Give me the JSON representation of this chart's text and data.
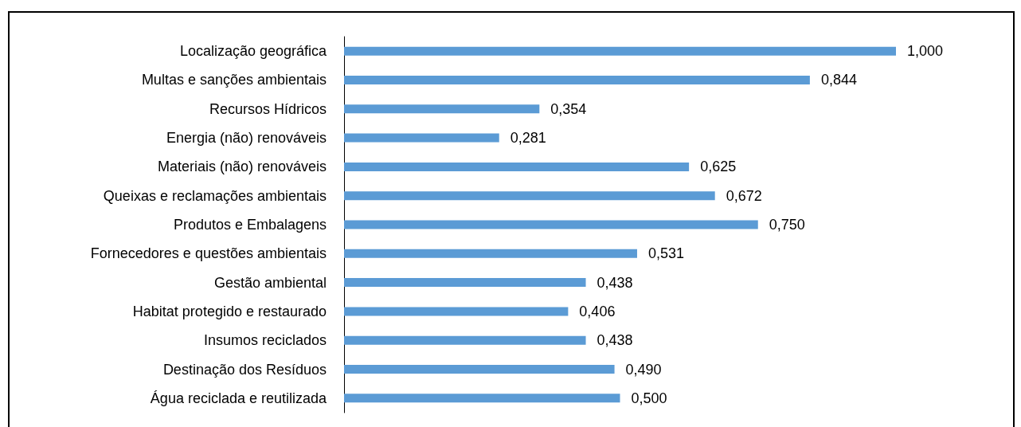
{
  "chart_data": {
    "type": "bar",
    "orientation": "horizontal",
    "color": "#5b9bd5",
    "value_labels": [
      "1,000",
      "0,844",
      "0,354",
      "0,281",
      "0,625",
      "0,672",
      "0,750",
      "0,531",
      "0,438",
      "0,406",
      "0,438",
      "0,490",
      "0,500"
    ],
    "categories": [
      "Localização geográfica",
      "Multas e sanções ambientais",
      "Recursos Hídricos",
      "Energia (não) renováveis",
      "Materiais (não) renováveis",
      "Queixas e reclamações ambientais",
      "Produtos e Embalagens",
      "Fornecedores e questões ambientais",
      "Gestão ambiental",
      "Habitat protegido e restaurado",
      "Insumos reciclados",
      "Destinação dos Resíduos",
      "Água reciclada e reutilizada"
    ],
    "values": [
      1.0,
      0.844,
      0.354,
      0.281,
      0.625,
      0.672,
      0.75,
      0.531,
      0.438,
      0.406,
      0.438,
      0.49,
      0.5
    ]
  }
}
